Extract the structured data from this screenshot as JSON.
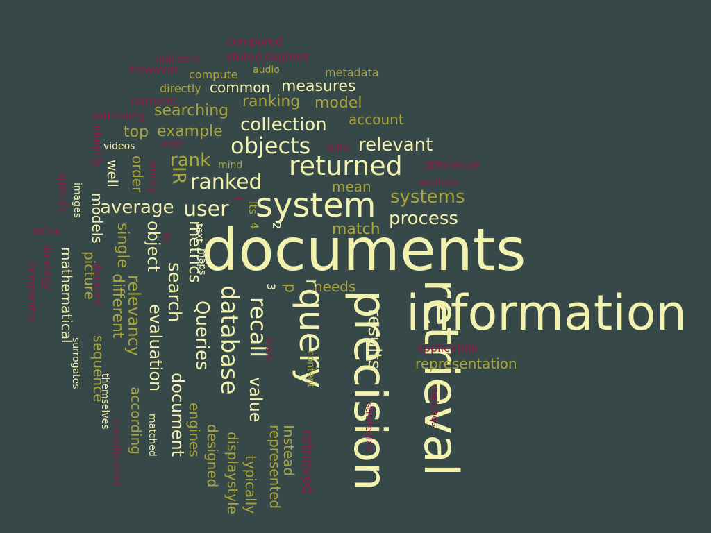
{
  "colors": {
    "background": "#374848",
    "cream": "#F2F2B0",
    "olive": "#A8A43C",
    "maroon": "#8E1C48"
  },
  "words": [
    {
      "text": "documents",
      "color": "cream"
    },
    {
      "text": "information",
      "color": "cream"
    },
    {
      "text": "retrieval",
      "color": "cream"
    },
    {
      "text": "precision",
      "color": "cream"
    },
    {
      "text": "system",
      "color": "cream"
    },
    {
      "text": "query",
      "color": "cream"
    },
    {
      "text": "returned",
      "color": "cream"
    },
    {
      "text": "objects",
      "color": "cream"
    },
    {
      "text": "collection",
      "color": "cream"
    },
    {
      "text": "relevant",
      "color": "cream"
    },
    {
      "text": "ranked",
      "color": "cream"
    },
    {
      "text": "average",
      "color": "cream"
    },
    {
      "text": "user",
      "color": "cream"
    },
    {
      "text": "process",
      "color": "cream"
    },
    {
      "text": "representation",
      "color": "olive"
    },
    {
      "text": "systems",
      "color": "olive"
    },
    {
      "text": "match",
      "color": "olive"
    },
    {
      "text": "mean",
      "color": "olive"
    },
    {
      "text": "needs",
      "color": "olive"
    },
    {
      "text": "account",
      "color": "olive"
    },
    {
      "text": "model",
      "color": "olive"
    },
    {
      "text": "ranking",
      "color": "olive"
    },
    {
      "text": "common",
      "color": "cream"
    },
    {
      "text": "measures",
      "color": "cream"
    },
    {
      "text": "searching",
      "color": "olive"
    },
    {
      "text": "example",
      "color": "olive"
    },
    {
      "text": "top",
      "color": "olive"
    },
    {
      "text": "rank",
      "color": "olive"
    },
    {
      "text": "mind",
      "color": "olive"
    },
    {
      "text": "directly",
      "color": "olive"
    },
    {
      "text": "compute",
      "color": "olive"
    },
    {
      "text": "audio",
      "color": "olive"
    },
    {
      "text": "metadata",
      "color": "olive"
    },
    {
      "text": "videos",
      "color": "cream"
    },
    {
      "text": "compared",
      "color": "maroon"
    },
    {
      "text": "stored",
      "color": "maroon"
    },
    {
      "text": "degrees",
      "color": "maroon"
    },
    {
      "text": "suitable",
      "color": "maroon"
    },
    {
      "text": "However",
      "color": "maroon"
    },
    {
      "text": "numeric",
      "color": "maroon"
    },
    {
      "text": "retrieving",
      "color": "maroon"
    },
    {
      "text": "kept",
      "color": "maroon"
    },
    {
      "text": "data",
      "color": "maroon"
    },
    {
      "text": "difference",
      "color": "maroon"
    },
    {
      "text": "wishes",
      "color": "maroon"
    },
    {
      "text": "refine",
      "color": "maroon"
    },
    {
      "text": "application",
      "color": "maroon"
    },
    {
      "text": "results",
      "color": "cream"
    },
    {
      "text": "recall",
      "color": "cream"
    },
    {
      "text": "value",
      "color": "cream"
    },
    {
      "text": "database",
      "color": "cream"
    },
    {
      "text": "Queries",
      "color": "cream"
    },
    {
      "text": "search",
      "color": "cream"
    },
    {
      "text": "document",
      "color": "cream"
    },
    {
      "text": "metrics",
      "color": "cream"
    },
    {
      "text": "object",
      "color": "cream"
    },
    {
      "text": "evaluation",
      "color": "cream"
    },
    {
      "text": "relevancy",
      "color": "olive"
    },
    {
      "text": "different",
      "color": "olive"
    },
    {
      "text": "single",
      "color": "olive"
    },
    {
      "text": "picture",
      "color": "olive"
    },
    {
      "text": "models",
      "color": "cream"
    },
    {
      "text": "mathematical",
      "color": "cream"
    },
    {
      "text": "sequence",
      "color": "olive"
    },
    {
      "text": "according",
      "color": "olive"
    },
    {
      "text": "engines",
      "color": "olive"
    },
    {
      "text": "designed",
      "color": "olive"
    },
    {
      "text": "displaystyle",
      "color": "olive"
    },
    {
      "text": "typically",
      "color": "olive"
    },
    {
      "text": "represented",
      "color": "olive"
    },
    {
      "text": "Instead",
      "color": "olive"
    },
    {
      "text": "retrieved",
      "color": "maroon"
    },
    {
      "text": "strategies",
      "color": "maroon"
    },
    {
      "text": "matches",
      "color": "maroon"
    },
    {
      "text": "content",
      "color": "olive"
    },
    {
      "text": "score",
      "color": "maroon"
    },
    {
      "text": "themselves",
      "color": "cream"
    },
    {
      "text": "surrogates",
      "color": "cream"
    },
    {
      "text": "matched",
      "color": "cream"
    },
    {
      "text": "transformed",
      "color": "maroon"
    },
    {
      "text": "iterated",
      "color": "maroon"
    },
    {
      "text": "be",
      "color": "maroon"
    },
    {
      "text": "its",
      "color": "olive"
    },
    {
      "text": "4",
      "color": "olive"
    },
    {
      "text": "1",
      "color": "maroon"
    },
    {
      "text": "2",
      "color": "cream"
    },
    {
      "text": "3",
      "color": "cream"
    },
    {
      "text": "p",
      "color": "olive"
    },
    {
      "text": "r",
      "color": "cream"
    },
    {
      "text": "IR",
      "color": "olive"
    },
    {
      "text": "entity",
      "color": "maroon"
    },
    {
      "text": "order",
      "color": "olive"
    },
    {
      "text": "well",
      "color": "cream"
    },
    {
      "text": "identify",
      "color": "maroon"
    },
    {
      "text": "specific",
      "color": "maroon"
    },
    {
      "text": "images",
      "color": "cream"
    },
    {
      "text": "strategy",
      "color": "maroon"
    },
    {
      "text": "incorporates",
      "color": "maroon"
    },
    {
      "text": "text",
      "color": "cream"
    },
    {
      "text": "maps",
      "color": "cream"
    }
  ]
}
